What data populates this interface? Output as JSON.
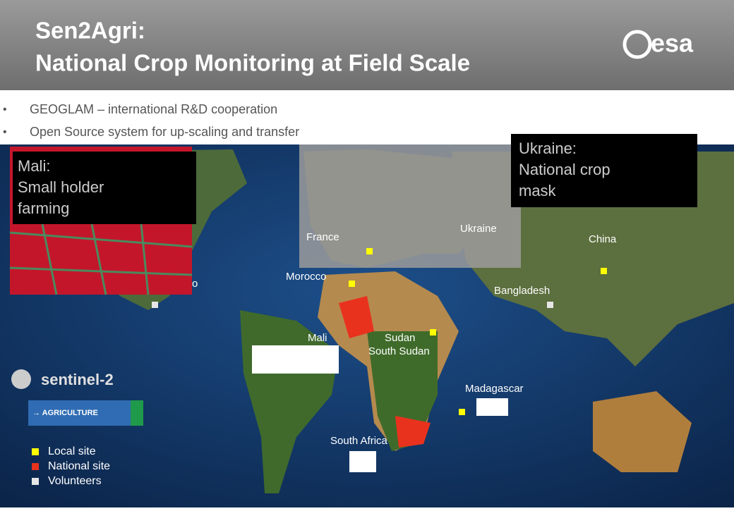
{
  "header": {
    "title_lines": [
      "Sen2Agri:",
      "National Crop Monitoring at Field Scale"
    ],
    "logo": "esa"
  },
  "bullets": [
    "GEOGLAM – international R&D cooperation",
    "Open Source system for up-scaling and transfer"
  ],
  "callouts": [
    {
      "lines": [
        "Mali:",
        "Small holder",
        "farming"
      ]
    },
    {
      "lines": [
        "Ukraine:",
        "National crop",
        "mask"
      ]
    }
  ],
  "map_labels": [
    "China",
    "Morocco",
    "Bangladesh",
    "Mali",
    "Sudan",
    "South Sudan",
    "Madagascar",
    "South Africa",
    "Ukraine",
    "France",
    "o"
  ],
  "sentinel": {
    "brand": "sentinel-2",
    "button": "→ AGRICULTURE"
  },
  "legend": [
    {
      "label": "Local site",
      "color": "#ffff00"
    },
    {
      "label": "National site",
      "color": "#e8321e"
    },
    {
      "label": "Volunteers",
      "color": "#e6e6e6"
    }
  ]
}
